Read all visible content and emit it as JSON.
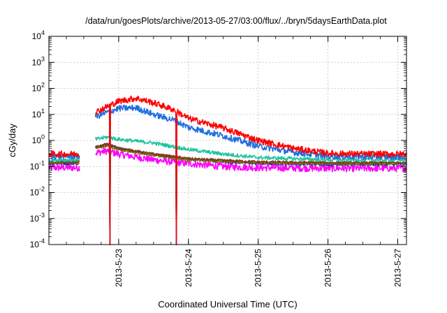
{
  "chart_data": {
    "type": "line",
    "title": "/data/run/goesPlots/archive/2013-05-27/03:00/flux/../bryn/5daysEarthData.plot",
    "xlabel": "Coordinated Universal Time (UTC)",
    "ylabel": "cGy/day",
    "y_scale": "log",
    "ylim": [
      0.0001,
      10000
    ],
    "xlim": [
      "2013-05-22 00:00",
      "2013-05-27 03:00"
    ],
    "grid": true,
    "x_ticks": [
      "2013-5-23",
      "2013-5-24",
      "2013-5-25",
      "2013-5-26",
      "2013-5-27"
    ],
    "y_ticks": [
      {
        "base": "10",
        "exp": "-4",
        "value": 0.0001
      },
      {
        "base": "10",
        "exp": "-3",
        "value": 0.001
      },
      {
        "base": "10",
        "exp": "-2",
        "value": 0.01
      },
      {
        "base": "10",
        "exp": "-1",
        "value": 0.1
      },
      {
        "base": "10",
        "exp": "0",
        "value": 1
      },
      {
        "base": "10",
        "exp": "1",
        "value": 10
      },
      {
        "base": "10",
        "exp": "2",
        "value": 100
      },
      {
        "base": "10",
        "exp": "3",
        "value": 1000
      },
      {
        "base": "10",
        "exp": "4",
        "value": 10000
      }
    ],
    "data_gaps": [
      [
        "2013-05-22 10:30",
        "2013-05-22 16:00"
      ]
    ],
    "drops": [
      "2013-05-22 16:05",
      "2013-05-22 21:00",
      "2013-05-23 19:50"
    ],
    "series": [
      {
        "color": "#ff0000",
        "jitter": 0.12,
        "x": [
          "2013-05-22 00:00",
          "2013-05-22 10:30",
          "2013-05-22 16:00",
          "2013-05-22 20:00",
          "2013-05-23 00:00",
          "2013-05-23 06:00",
          "2013-05-23 12:00",
          "2013-05-23 19:00",
          "2013-05-24 00:00",
          "2013-05-24 12:00",
          "2013-05-25 00:00",
          "2013-05-25 12:00",
          "2013-05-26 00:00",
          "2013-05-26 12:00",
          "2013-05-27 00:00",
          "2013-05-27 03:00"
        ],
        "y": [
          0.3,
          0.3,
          12,
          20,
          32,
          42,
          28,
          15,
          7,
          3,
          1.0,
          0.5,
          0.32,
          0.3,
          0.3,
          0.3
        ]
      },
      {
        "color": "#1f6fe0",
        "jitter": 0.12,
        "x": [
          "2013-05-22 00:00",
          "2013-05-22 10:30",
          "2013-05-22 16:00",
          "2013-05-22 20:00",
          "2013-05-23 00:00",
          "2013-05-23 06:00",
          "2013-05-23 12:00",
          "2013-05-23 19:00",
          "2013-05-24 00:00",
          "2013-05-24 12:00",
          "2013-05-25 00:00",
          "2013-05-25 12:00",
          "2013-05-26 00:00",
          "2013-05-26 12:00",
          "2013-05-27 00:00",
          "2013-05-27 03:00"
        ],
        "y": [
          0.25,
          0.25,
          8,
          12,
          17,
          18,
          10,
          6,
          3.2,
          1.5,
          0.6,
          0.35,
          0.25,
          0.24,
          0.24,
          0.24
        ]
      },
      {
        "color": "#20c4a0",
        "jitter": 0.07,
        "x": [
          "2013-05-22 00:00",
          "2013-05-22 10:30",
          "2013-05-22 16:00",
          "2013-05-22 20:00",
          "2013-05-23 00:00",
          "2013-05-23 12:00",
          "2013-05-24 00:00",
          "2013-05-24 12:00",
          "2013-05-25 00:00",
          "2013-05-25 12:00",
          "2013-05-26 00:00",
          "2013-05-27 03:00"
        ],
        "y": [
          0.18,
          0.18,
          1.1,
          1.35,
          1.1,
          0.8,
          0.45,
          0.3,
          0.22,
          0.2,
          0.18,
          0.18
        ]
      },
      {
        "color": "#7a3d1a",
        "jitter": 0.05,
        "x": [
          "2013-05-22 00:00",
          "2013-05-22 10:30",
          "2013-05-22 16:00",
          "2013-05-22 20:00",
          "2013-05-23 00:00",
          "2013-05-23 12:00",
          "2013-05-24 00:00",
          "2013-05-24 12:00",
          "2013-05-25 00:00",
          "2013-05-26 00:00",
          "2013-05-27 03:00"
        ],
        "y": [
          0.15,
          0.15,
          0.55,
          0.7,
          0.5,
          0.3,
          0.2,
          0.17,
          0.15,
          0.14,
          0.14
        ]
      },
      {
        "color": "#808000",
        "jitter": 0.05,
        "x": [
          "2013-05-22 00:00",
          "2013-05-22 10:30",
          "2013-05-22 16:00",
          "2013-05-22 20:00",
          "2013-05-23 00:00",
          "2013-05-23 12:00",
          "2013-05-24 00:00",
          "2013-05-24 12:00",
          "2013-05-25 00:00",
          "2013-05-26 00:00",
          "2013-05-27 03:00"
        ],
        "y": [
          0.14,
          0.14,
          0.5,
          0.62,
          0.45,
          0.27,
          0.18,
          0.16,
          0.14,
          0.13,
          0.13
        ]
      },
      {
        "color": "#3a2aa0",
        "jitter": 0.05,
        "x": [
          "2013-05-22 00:00",
          "2013-05-22 10:30",
          "2013-05-22 16:00",
          "2013-05-22 20:00",
          "2013-05-23 00:00",
          "2013-05-23 12:00",
          "2013-05-24 00:00",
          "2013-05-24 12:00",
          "2013-05-25 00:00",
          "2013-05-26 00:00",
          "2013-05-27 03:00"
        ],
        "y": [
          0.13,
          0.13,
          0.55,
          0.75,
          0.5,
          0.28,
          0.19,
          0.15,
          0.13,
          0.12,
          0.12
        ]
      },
      {
        "color": "#ff00ff",
        "jitter": 0.14,
        "x": [
          "2013-05-22 00:00",
          "2013-05-22 10:30",
          "2013-05-22 16:00",
          "2013-05-22 20:00",
          "2013-05-23 00:00",
          "2013-05-23 12:00",
          "2013-05-24 00:00",
          "2013-05-24 12:00",
          "2013-05-25 00:00",
          "2013-05-26 00:00",
          "2013-05-27 03:00"
        ],
        "y": [
          0.09,
          0.09,
          0.33,
          0.4,
          0.3,
          0.18,
          0.13,
          0.1,
          0.09,
          0.085,
          0.085
        ]
      }
    ]
  }
}
